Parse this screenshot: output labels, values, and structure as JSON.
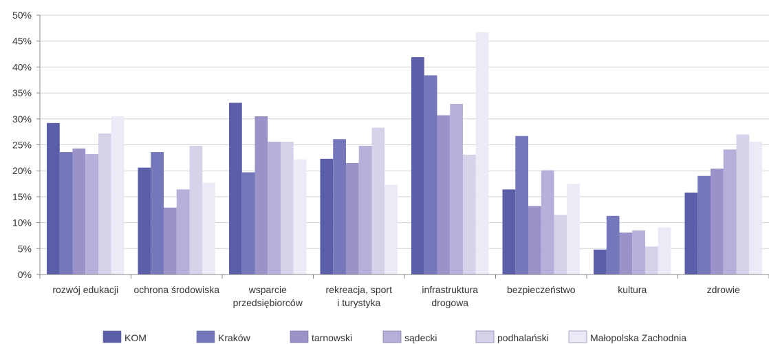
{
  "chart_data": {
    "type": "bar",
    "title": "",
    "xlabel": "",
    "ylabel": "",
    "ylim": [
      0,
      50
    ],
    "y_ticks": [
      "0%",
      "5%",
      "10%",
      "15%",
      "20%",
      "25%",
      "30%",
      "35%",
      "40%",
      "45%",
      "50%"
    ],
    "grid": true,
    "legend_position": "bottom",
    "categories": [
      [
        "rozwój edukacji"
      ],
      [
        "ochrona środowiska"
      ],
      [
        "wsparcie",
        "przedsiębiorców"
      ],
      [
        "rekreacja, sport",
        "i turystyka"
      ],
      [
        "infrastruktura",
        "drogowa"
      ],
      [
        "bezpieczeństwo"
      ],
      [
        "kultura"
      ],
      [
        "zdrowie"
      ]
    ],
    "series": [
      {
        "name": "KOM",
        "color": "#5a5ea8",
        "values": [
          29.2,
          20.6,
          33.1,
          22.3,
          41.9,
          16.4,
          4.8,
          15.8
        ]
      },
      {
        "name": "Kraków",
        "color": "#7478bb",
        "values": [
          23.6,
          23.6,
          19.7,
          26.1,
          38.4,
          26.7,
          11.3,
          19.0
        ]
      },
      {
        "name": "tarnowski",
        "color": "#9a92c8",
        "values": [
          24.3,
          12.9,
          30.5,
          21.5,
          30.7,
          13.2,
          8.1,
          20.4
        ]
      },
      {
        "name": "sądecki",
        "color": "#b4b0da",
        "values": [
          23.2,
          16.4,
          25.6,
          24.8,
          32.9,
          20.1,
          8.5,
          24.1
        ]
      },
      {
        "name": "podhalański",
        "color": "#d5d2ea",
        "values": [
          27.2,
          24.8,
          25.6,
          28.3,
          23.1,
          11.5,
          5.4,
          27.0
        ]
      },
      {
        "name": "Małopolska Zachodnia",
        "color": "#ebeaf6",
        "values": [
          30.5,
          17.7,
          22.2,
          17.3,
          46.7,
          17.5,
          9.1,
          25.6
        ]
      }
    ]
  }
}
